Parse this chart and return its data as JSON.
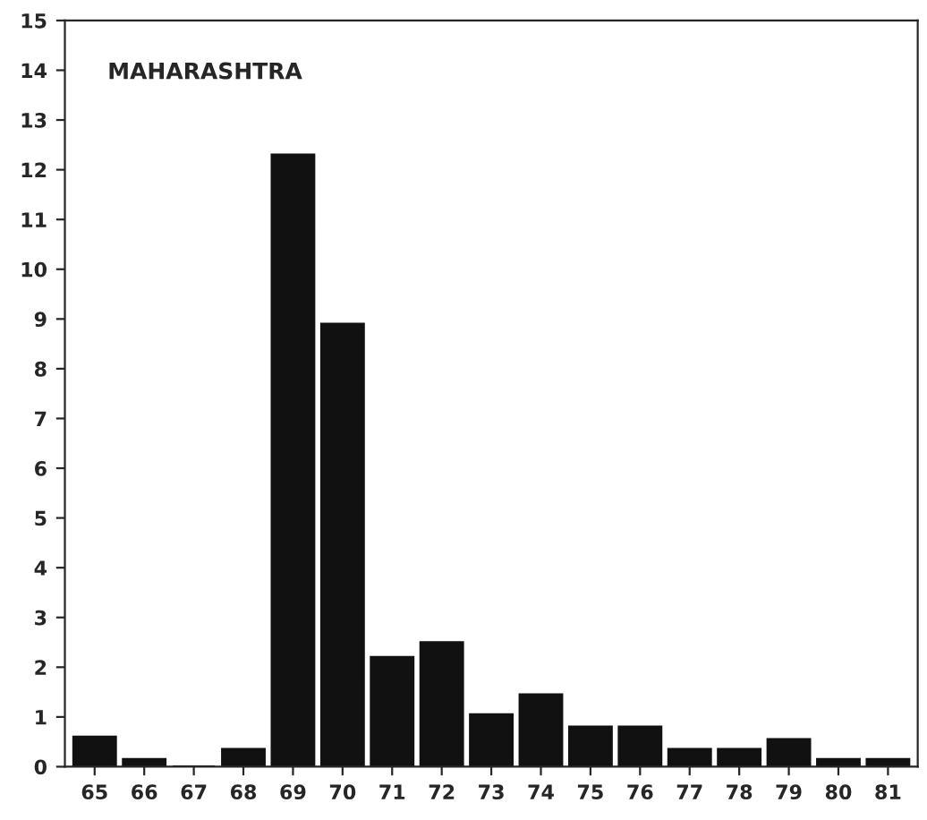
{
  "chart_data": {
    "type": "bar",
    "title": "MAHARASHTRA",
    "categories": [
      "65",
      "66",
      "67",
      "68",
      "69",
      "70",
      "71",
      "72",
      "73",
      "74",
      "75",
      "76",
      "77",
      "78",
      "79",
      "80",
      "81"
    ],
    "values": [
      0.6,
      0.15,
      0,
      0.35,
      12.3,
      8.9,
      2.2,
      2.5,
      1.05,
      1.45,
      0.8,
      0.8,
      0.35,
      0.35,
      0.55,
      0.15,
      0.15
    ],
    "color": "#111111",
    "ylim": [
      0,
      15
    ],
    "yticks": [
      0,
      1,
      2,
      3,
      4,
      5,
      6,
      7,
      8,
      9,
      10,
      11,
      12,
      13,
      14,
      15
    ],
    "grid": false
  }
}
